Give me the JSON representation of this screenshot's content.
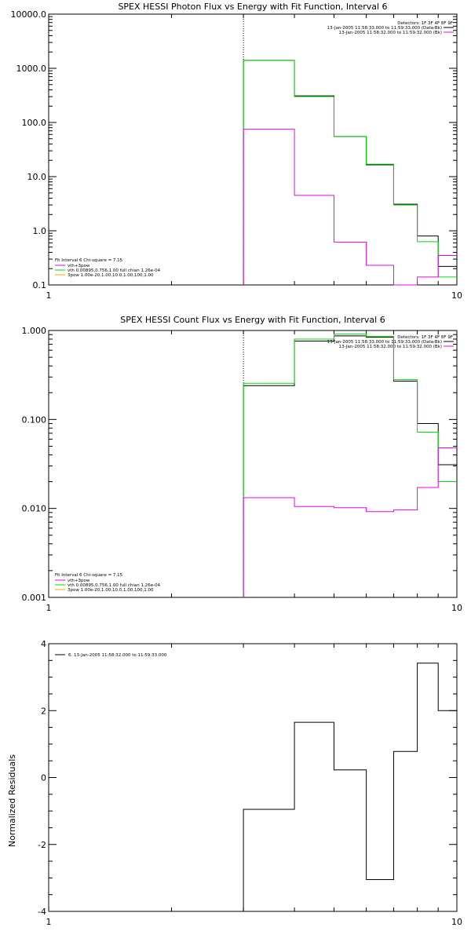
{
  "chart_data": [
    {
      "type": "line",
      "title": "SPEX HESSI Photon Flux vs Energy with Fit Function, Interval 6",
      "xscale": "log",
      "yscale": "log",
      "xlim": [
        1,
        10
      ],
      "ylim": [
        0.1,
        10000
      ],
      "xtick_labels": [
        "1",
        "10"
      ],
      "ytick_labels": [
        "0.1",
        "1.0",
        "10.0",
        "100.0",
        "1000.0",
        "10000.0"
      ],
      "vline_x": 3,
      "legend_top_right": [
        "Detectors: 1F 3F 4F 8F 9F",
        "13-Jan-2005 11:58:33.000 to 11:59:33.000 (Data-Bk)",
        "13-Jan-2005 11:58:32.000 to 11:59:32.000 (Bk)"
      ],
      "legend_bottom_left": [
        "Fit Interval 6   Chi-square = 7.15",
        "vth+3pow",
        "vth 0.00895,0.756,1.00  full chian 1.26e-04",
        "3pow 1.00e-20,1.00,10.0,1.00,100,1.00"
      ],
      "edges": [
        3,
        4,
        5,
        6,
        7,
        8,
        9,
        10
      ],
      "series": [
        {
          "name": "13-Jan-2005 11:58:33.000 to 11:59:33.000 (Data-Bk)",
          "color": "#000000",
          "values": [
            1400,
            310,
            55,
            16.5,
            3.1,
            0.8,
            0.22
          ]
        },
        {
          "name": "vth+3pow",
          "color": "#00dd00",
          "values": [
            1400,
            300,
            55,
            17,
            3.0,
            0.63,
            0.14
          ]
        },
        {
          "name": "13-Jan-2005 11:58:32.000 to 11:59:32.000 (Bk)",
          "color": "#ee00ee",
          "values": [
            75,
            4.5,
            0.62,
            0.23,
            0.095,
            0.14,
            0.35
          ]
        }
      ]
    },
    {
      "type": "line",
      "title": "SPEX HESSI Count Flux vs Energy with Fit Function, Interval 6",
      "xscale": "log",
      "yscale": "log",
      "xlim": [
        1,
        10
      ],
      "ylim": [
        0.001,
        1.0
      ],
      "xtick_labels": [
        "1",
        "10"
      ],
      "ytick_labels": [
        "0.001",
        "0.010",
        "0.100",
        "1.000"
      ],
      "vline_x": 3,
      "legend_top_right": [
        "Detectors: 1F 3F 4F 8F 9F",
        "13-Jan-2005 11:58:33.000 to 11:59:33.000 (Data-Bk)",
        "13-Jan-2005 11:58:32.000 to 11:59:32.000 (Bk)"
      ],
      "legend_bottom_left": [
        "Fit Interval 6   Chi-square = 7.15",
        "vth+3pow",
        "vth 0.00895,0.756,1.00  full chian 1.26e-04",
        "3pow 1.00e-20,1.00,10.0,1.00,100,1.00"
      ],
      "edges": [
        3,
        4,
        5,
        6,
        7,
        8,
        9,
        10
      ],
      "series": [
        {
          "name": "13-Jan-2005 11:58:33.000 to 11:59:33.000 (Data-Bk)",
          "color": "#000000",
          "values": [
            0.24,
            0.76,
            0.87,
            0.84,
            0.27,
            0.09,
            0.031
          ]
        },
        {
          "name": "vth+3pow",
          "color": "#00dd00",
          "values": [
            0.255,
            0.8,
            0.91,
            0.86,
            0.28,
            0.072,
            0.02
          ]
        },
        {
          "name": "13-Jan-2005 11:58:32.000 to 11:59:32.000 (Bk)",
          "color": "#ee00ee",
          "values": [
            0.0132,
            0.0105,
            0.0102,
            0.0092,
            0.0096,
            0.0172,
            0.048
          ]
        }
      ]
    },
    {
      "type": "line",
      "title": "",
      "xscale": "log",
      "yscale": "linear",
      "xlim": [
        1,
        10
      ],
      "ylim": [
        -4,
        4
      ],
      "xtick_labels": [
        "1",
        "10"
      ],
      "ytick_labels": [
        "-4",
        "-2",
        "0",
        "2",
        "4"
      ],
      "ylabel": "Normalized Residuals",
      "legend_top_left": [
        "6. 13-Jan-2005 11:58:32.000 to 11:59:33.000"
      ],
      "edges": [
        3,
        4,
        5,
        6,
        7,
        8,
        9,
        10
      ],
      "series": [
        {
          "color": "#000000",
          "values": [
            -0.95,
            1.65,
            0.23,
            -3.05,
            0.78,
            3.42,
            2.0
          ]
        }
      ]
    }
  ]
}
